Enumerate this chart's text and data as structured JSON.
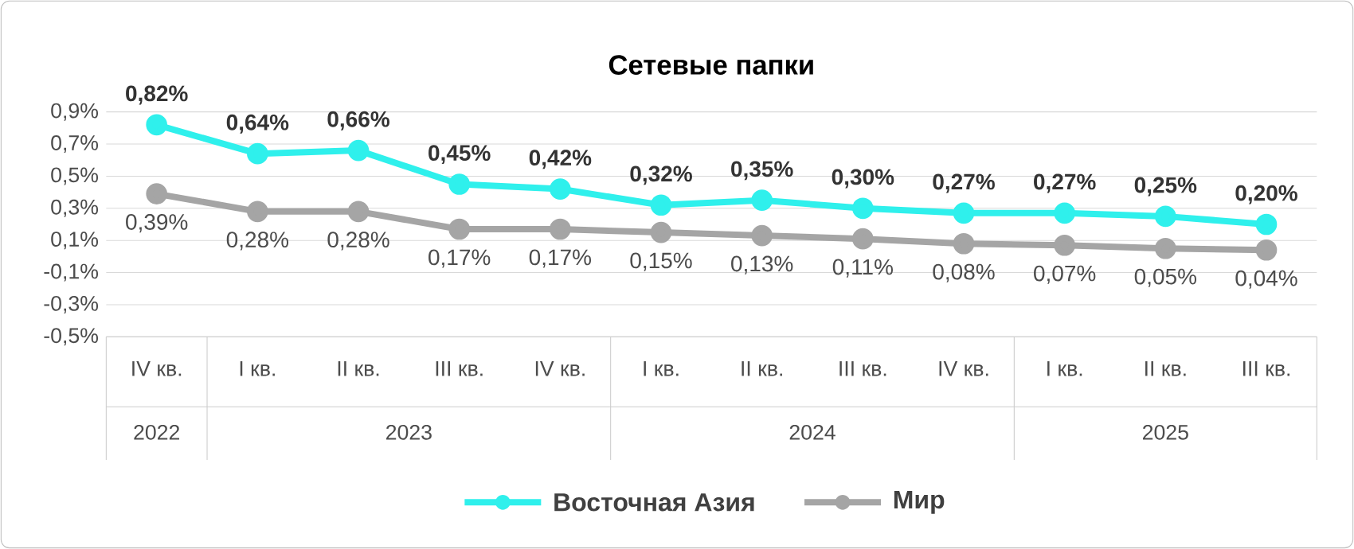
{
  "chart_data": {
    "type": "line",
    "title": "Сетевые папки",
    "categories": [
      "IV кв.",
      "I кв.",
      "II кв.",
      "III кв.",
      "IV кв.",
      "I кв.",
      "II кв.",
      "III кв.",
      "IV кв.",
      "I кв.",
      "II кв.",
      "III кв."
    ],
    "series": [
      {
        "name": "Восточная Азия",
        "color": "#2ff0ec",
        "values": [
          0.82,
          0.64,
          0.66,
          0.45,
          0.42,
          0.32,
          0.35,
          0.3,
          0.27,
          0.27,
          0.25,
          0.2
        ],
        "value_labels": [
          "0,82%",
          "0,64%",
          "0,66%",
          "0,45%",
          "0,42%",
          "0,32%",
          "0,35%",
          "0,30%",
          "0,27%",
          "0,27%",
          "0,25%",
          "0,20%"
        ]
      },
      {
        "name": "Мир",
        "color": "#a5a5a5",
        "values": [
          0.39,
          0.28,
          0.28,
          0.17,
          0.17,
          0.15,
          0.13,
          0.11,
          0.08,
          0.07,
          0.05,
          0.04
        ],
        "value_labels": [
          "0,39%",
          "0,28%",
          "0,28%",
          "0,17%",
          "0,17%",
          "0,15%",
          "0,13%",
          "0,11%",
          "0,08%",
          "0,07%",
          "0,05%",
          "0,04%"
        ]
      }
    ],
    "ylim": [
      -0.5,
      0.9
    ],
    "yticks": [
      {
        "value": -0.5,
        "label": "-0,5%"
      },
      {
        "value": -0.3,
        "label": "-0,3%"
      },
      {
        "value": -0.1,
        "label": "-0,1%"
      },
      {
        "value": 0.1,
        "label": "0,1%"
      },
      {
        "value": 0.3,
        "label": "0,3%"
      },
      {
        "value": 0.5,
        "label": "0,5%"
      },
      {
        "value": 0.7,
        "label": "0,7%"
      },
      {
        "value": 0.9,
        "label": "0,9%"
      }
    ],
    "annotations": [
      "2022",
      "2023",
      "2024",
      "2025"
    ],
    "grid": "y",
    "legend": "bottom",
    "marker": "circle",
    "line_style": "solid"
  }
}
